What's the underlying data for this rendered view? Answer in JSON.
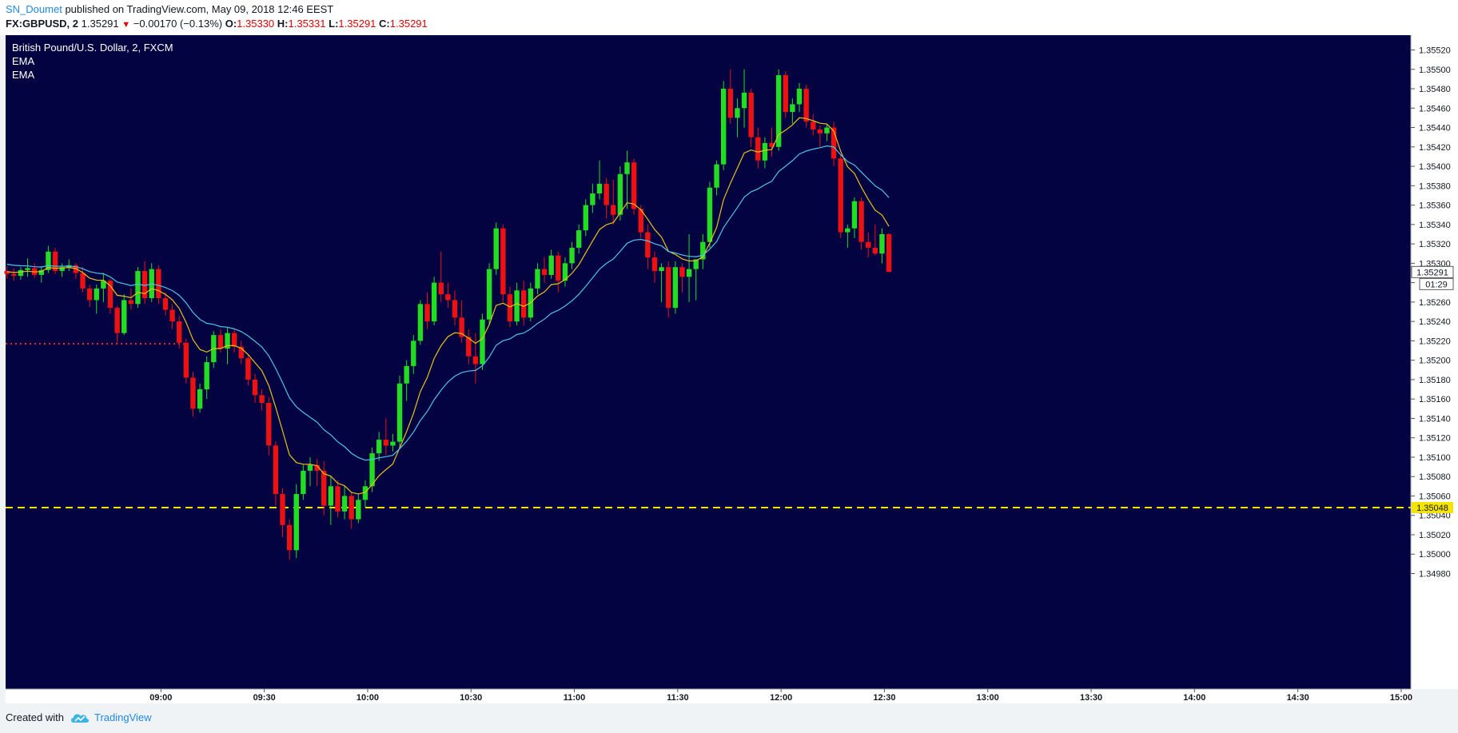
{
  "header": {
    "author": "SN_Doumet",
    "published": "published on TradingView.com, May 09, 2018 12:46 EEST",
    "symbol": "FX:GBPUSD, 2",
    "last": "1.35291",
    "change_arrow": "▼",
    "change": "−0.00170 (−0.13%)",
    "o_label": "O:",
    "o_value": "1.35330",
    "h_label": "H:",
    "h_value": "1.35331",
    "l_label": "L:",
    "l_value": "1.35291",
    "c_label": "C:",
    "c_value": "1.35291"
  },
  "legend": {
    "instrument": "British Pound/U.S. Dollar, 2, FXCM",
    "indicator1": "EMA",
    "indicator2": "EMA"
  },
  "footer": {
    "created_with": "Created with",
    "brand": "TradingView",
    "logo_icon": "tradingview-cloud-icon"
  },
  "colors": {
    "background": "#020340",
    "up": "#22dd22",
    "down": "#ee1111",
    "ema_fast": "#e8c21a",
    "ema_slow": "#4fc3e8",
    "hline_yellow": "#f5e400",
    "hline_red": "#ee2222"
  },
  "chart_data": {
    "type": "candlestick",
    "y_range": [
      1.3497,
      1.3553
    ],
    "y_ticks": [
      "1.35520",
      "1.35500",
      "1.35480",
      "1.35460",
      "1.35440",
      "1.35420",
      "1.35400",
      "1.35380",
      "1.35360",
      "1.35340",
      "1.35320",
      "1.35300",
      "1.35280",
      "1.35260",
      "1.35240",
      "1.35220",
      "1.35200",
      "1.35180",
      "1.35160",
      "1.35140",
      "1.35120",
      "1.35100",
      "1.35080",
      "1.35060",
      "1.35040",
      "1.35020",
      "1.35000",
      "1.34980"
    ],
    "x_ticks": [
      "09:00",
      "09:30",
      "10:00",
      "10:30",
      "11:00",
      "11:30",
      "12:00",
      "12:30",
      "13:00",
      "13:30",
      "14:00",
      "14:30",
      "15:00"
    ],
    "x_tick_bar_index": [
      22,
      37,
      52,
      67,
      82,
      97,
      112,
      127,
      142,
      157,
      172,
      187,
      202
    ],
    "last_price_label": "1.35291",
    "last_price": 1.35291,
    "countdown_label": "01:29",
    "horizontal_level_label": "1.35048",
    "horizontal_level": 1.35048,
    "red_dotted_level": 1.35217,
    "candles": [
      [
        1.35292,
        1.35297,
        1.35284,
        1.35289
      ],
      [
        1.35289,
        1.35295,
        1.35282,
        1.35287
      ],
      [
        1.35287,
        1.35296,
        1.35283,
        1.35293
      ],
      [
        1.35293,
        1.35305,
        1.35286,
        1.35295
      ],
      [
        1.35295,
        1.353,
        1.35285,
        1.35288
      ],
      [
        1.35288,
        1.35297,
        1.3528,
        1.35293
      ],
      [
        1.35293,
        1.35318,
        1.3529,
        1.35312
      ],
      [
        1.35312,
        1.35316,
        1.35289,
        1.35292
      ],
      [
        1.35292,
        1.353,
        1.35286,
        1.35296
      ],
      [
        1.35296,
        1.35304,
        1.35292,
        1.35298
      ],
      [
        1.35298,
        1.353,
        1.35284,
        1.3529
      ],
      [
        1.3529,
        1.35296,
        1.3527,
        1.35274
      ],
      [
        1.35274,
        1.35278,
        1.35255,
        1.35262
      ],
      [
        1.35262,
        1.35278,
        1.35248,
        1.35274
      ],
      [
        1.35274,
        1.3529,
        1.3526,
        1.35282
      ],
      [
        1.35282,
        1.35284,
        1.35248,
        1.35254
      ],
      [
        1.35254,
        1.35256,
        1.35218,
        1.35228
      ],
      [
        1.35228,
        1.35268,
        1.35226,
        1.35262
      ],
      [
        1.35262,
        1.35274,
        1.35252,
        1.35258
      ],
      [
        1.35258,
        1.35296,
        1.35254,
        1.35292
      ],
      [
        1.35292,
        1.35302,
        1.35258,
        1.35264
      ],
      [
        1.35264,
        1.353,
        1.3526,
        1.35294
      ],
      [
        1.35294,
        1.35298,
        1.35258,
        1.35264
      ],
      [
        1.35264,
        1.3527,
        1.35246,
        1.35252
      ],
      [
        1.35252,
        1.35258,
        1.35232,
        1.3524
      ],
      [
        1.3524,
        1.35246,
        1.35212,
        1.35218
      ],
      [
        1.35218,
        1.35222,
        1.35176,
        1.35182
      ],
      [
        1.35182,
        1.35188,
        1.35142,
        1.3515
      ],
      [
        1.3515,
        1.35176,
        1.35146,
        1.3517
      ],
      [
        1.3517,
        1.35204,
        1.3516,
        1.35198
      ],
      [
        1.35198,
        1.3523,
        1.35192,
        1.35226
      ],
      [
        1.35226,
        1.35232,
        1.35208,
        1.35212
      ],
      [
        1.35212,
        1.35234,
        1.35196,
        1.35228
      ],
      [
        1.35228,
        1.35232,
        1.35208,
        1.35214
      ],
      [
        1.35214,
        1.3522,
        1.35196,
        1.35202
      ],
      [
        1.35202,
        1.35206,
        1.35174,
        1.3518
      ],
      [
        1.3518,
        1.35186,
        1.35156,
        1.35164
      ],
      [
        1.35164,
        1.3517,
        1.35148,
        1.35156
      ],
      [
        1.35156,
        1.35162,
        1.35102,
        1.35112
      ],
      [
        1.35112,
        1.35116,
        1.3505,
        1.35062
      ],
      [
        1.35062,
        1.35068,
        1.35018,
        1.3503
      ],
      [
        1.3503,
        1.35036,
        1.34994,
        1.35004
      ],
      [
        1.35004,
        1.35072,
        1.34996,
        1.35062
      ],
      [
        1.35062,
        1.35092,
        1.35056,
        1.35086
      ],
      [
        1.35086,
        1.351,
        1.3507,
        1.35092
      ],
      [
        1.35092,
        1.35098,
        1.3507,
        1.35086
      ],
      [
        1.35086,
        1.35096,
        1.3504,
        1.3505
      ],
      [
        1.3505,
        1.3508,
        1.3503,
        1.3507
      ],
      [
        1.3507,
        1.35076,
        1.35038,
        1.35044
      ],
      [
        1.35044,
        1.3507,
        1.35036,
        1.3506
      ],
      [
        1.3506,
        1.35064,
        1.35026,
        1.35036
      ],
      [
        1.35036,
        1.35062,
        1.35032,
        1.35056
      ],
      [
        1.35056,
        1.35076,
        1.35048,
        1.3507
      ],
      [
        1.3507,
        1.3511,
        1.35064,
        1.35104
      ],
      [
        1.35104,
        1.35126,
        1.35096,
        1.35118
      ],
      [
        1.35118,
        1.3514,
        1.35102,
        1.35112
      ],
      [
        1.35112,
        1.35124,
        1.35106,
        1.35116
      ],
      [
        1.35116,
        1.35184,
        1.3511,
        1.35176
      ],
      [
        1.35176,
        1.352,
        1.35158,
        1.35194
      ],
      [
        1.35194,
        1.35226,
        1.35186,
        1.3522
      ],
      [
        1.3522,
        1.35262,
        1.35216,
        1.35258
      ],
      [
        1.35258,
        1.3527,
        1.35232,
        1.3524
      ],
      [
        1.3524,
        1.35286,
        1.35236,
        1.3528
      ],
      [
        1.3528,
        1.35312,
        1.3526,
        1.35268
      ],
      [
        1.35268,
        1.3528,
        1.35254,
        1.35262
      ],
      [
        1.35262,
        1.35272,
        1.35236,
        1.35244
      ],
      [
        1.35244,
        1.35262,
        1.35218,
        1.35224
      ],
      [
        1.35224,
        1.35232,
        1.35196,
        1.35204
      ],
      [
        1.35204,
        1.35228,
        1.35176,
        1.35196
      ],
      [
        1.35196,
        1.35248,
        1.3519,
        1.35242
      ],
      [
        1.35242,
        1.353,
        1.35236,
        1.35294
      ],
      [
        1.35294,
        1.35342,
        1.35288,
        1.35336
      ],
      [
        1.35336,
        1.3534,
        1.3526,
        1.35268
      ],
      [
        1.35268,
        1.35276,
        1.35234,
        1.3524
      ],
      [
        1.3524,
        1.3528,
        1.35236,
        1.35272
      ],
      [
        1.35272,
        1.35282,
        1.35236,
        1.35244
      ],
      [
        1.35244,
        1.3528,
        1.3524,
        1.35274
      ],
      [
        1.35274,
        1.353,
        1.35268,
        1.35294
      ],
      [
        1.35294,
        1.35306,
        1.3528,
        1.35288
      ],
      [
        1.35288,
        1.35314,
        1.35284,
        1.35308
      ],
      [
        1.35308,
        1.35312,
        1.3527,
        1.35282
      ],
      [
        1.35282,
        1.35306,
        1.35276,
        1.353
      ],
      [
        1.353,
        1.35322,
        1.35294,
        1.35316
      ],
      [
        1.35316,
        1.3534,
        1.3531,
        1.35334
      ],
      [
        1.35334,
        1.35366,
        1.35328,
        1.3536
      ],
      [
        1.3536,
        1.35382,
        1.35352,
        1.35372
      ],
      [
        1.35372,
        1.35406,
        1.35366,
        1.35382
      ],
      [
        1.35382,
        1.35388,
        1.35346,
        1.3536
      ],
      [
        1.3536,
        1.35386,
        1.3534,
        1.3535
      ],
      [
        1.3535,
        1.354,
        1.35344,
        1.35392
      ],
      [
        1.35392,
        1.35416,
        1.35356,
        1.35404
      ],
      [
        1.35404,
        1.35408,
        1.3535,
        1.35356
      ],
      [
        1.35356,
        1.3536,
        1.35326,
        1.35332
      ],
      [
        1.35332,
        1.3534,
        1.35294,
        1.35306
      ],
      [
        1.35306,
        1.35312,
        1.3528,
        1.35292
      ],
      [
        1.35292,
        1.353,
        1.3526,
        1.35296
      ],
      [
        1.35296,
        1.35302,
        1.35244,
        1.35254
      ],
      [
        1.35254,
        1.35302,
        1.35248,
        1.35296
      ],
      [
        1.35296,
        1.353,
        1.3527,
        1.35286
      ],
      [
        1.35286,
        1.3533,
        1.3526,
        1.35294
      ],
      [
        1.35294,
        1.353,
        1.35262,
        1.35304
      ],
      [
        1.35304,
        1.3533,
        1.35294,
        1.35322
      ],
      [
        1.35322,
        1.35384,
        1.35316,
        1.35378
      ],
      [
        1.35378,
        1.35406,
        1.3537,
        1.35402
      ],
      [
        1.35402,
        1.35488,
        1.35396,
        1.3548
      ],
      [
        1.3548,
        1.355,
        1.35444,
        1.3545
      ],
      [
        1.3545,
        1.3547,
        1.3543,
        1.3546
      ],
      [
        1.3546,
        1.355,
        1.3544,
        1.35476
      ],
      [
        1.35476,
        1.3548,
        1.3542,
        1.3543
      ],
      [
        1.3543,
        1.3544,
        1.35398,
        1.35406
      ],
      [
        1.35406,
        1.3543,
        1.35398,
        1.35424
      ],
      [
        1.35424,
        1.3544,
        1.3541,
        1.3542
      ],
      [
        1.3542,
        1.355,
        1.35416,
        1.35494
      ],
      [
        1.35494,
        1.35498,
        1.3545,
        1.35456
      ],
      [
        1.35456,
        1.3547,
        1.35444,
        1.35464
      ],
      [
        1.35464,
        1.35486,
        1.35456,
        1.3548
      ],
      [
        1.3548,
        1.35484,
        1.3544,
        1.35446
      ],
      [
        1.35446,
        1.35454,
        1.35432,
        1.35438
      ],
      [
        1.35438,
        1.35442,
        1.3542,
        1.35434
      ],
      [
        1.35434,
        1.35444,
        1.35426,
        1.3544
      ],
      [
        1.3544,
        1.35446,
        1.354,
        1.35408
      ],
      [
        1.35408,
        1.35412,
        1.35326,
        1.35332
      ],
      [
        1.35332,
        1.3534,
        1.35316,
        1.35336
      ],
      [
        1.35336,
        1.35368,
        1.35326,
        1.35364
      ],
      [
        1.35364,
        1.35368,
        1.35314,
        1.35322
      ],
      [
        1.35322,
        1.35332,
        1.35306,
        1.35316
      ],
      [
        1.35316,
        1.3534,
        1.35308,
        1.3531
      ],
      [
        1.3531,
        1.35336,
        1.353,
        1.3533
      ],
      [
        1.3533,
        1.35331,
        1.35291,
        1.35291
      ]
    ]
  }
}
